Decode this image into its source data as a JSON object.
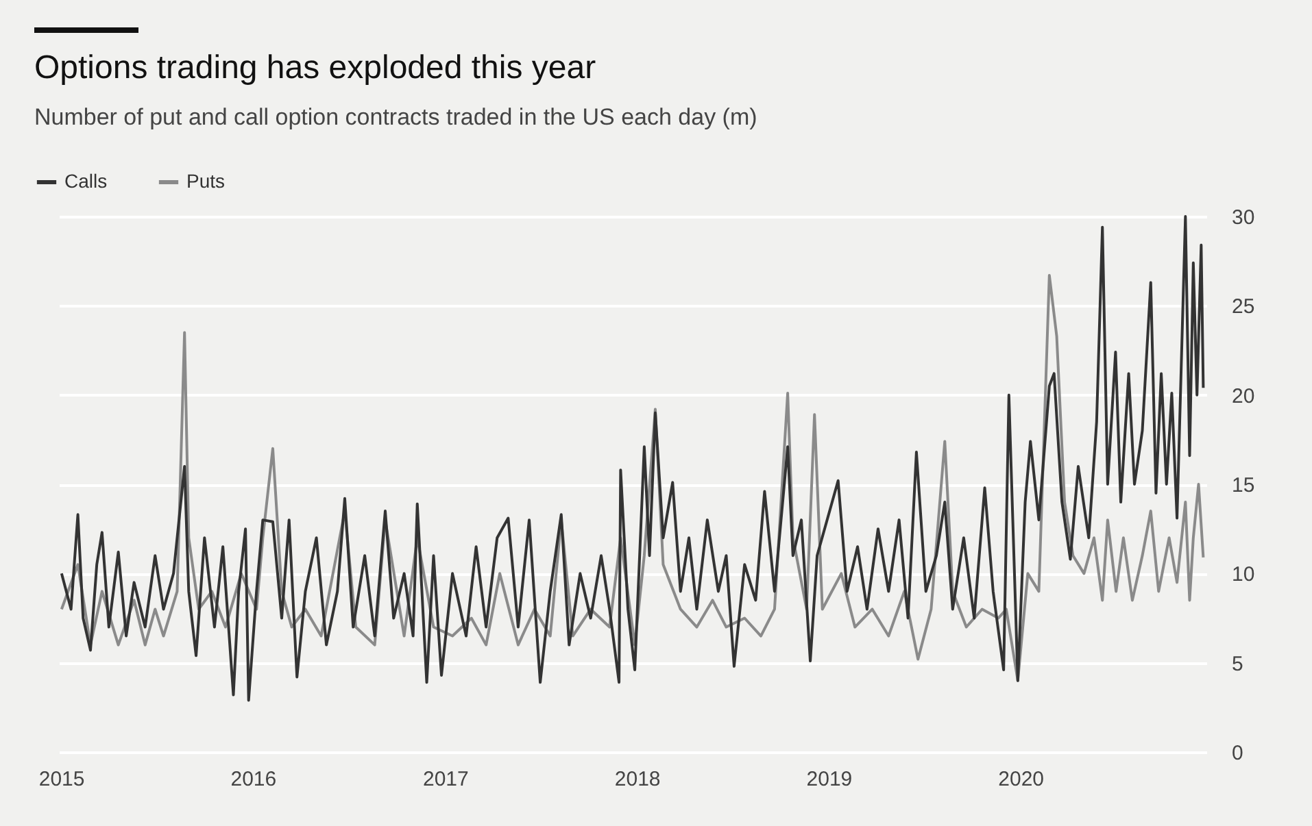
{
  "chart_data": {
    "type": "line",
    "title": "Options trading has exploded this year",
    "subtitle": "Number of put and call option contracts traded in the US each day (m)",
    "xlim": [
      "2014-12-28",
      "2020-12-20"
    ],
    "xticks": [
      {
        "value": "2015-01-01",
        "label": "2015"
      },
      {
        "value": "2016-01-01",
        "label": "2016"
      },
      {
        "value": "2017-01-01",
        "label": "2017"
      },
      {
        "value": "2018-01-01",
        "label": "2018"
      },
      {
        "value": "2019-01-01",
        "label": "2019"
      },
      {
        "value": "2020-01-01",
        "label": "2020"
      }
    ],
    "ylim": [
      0,
      30
    ],
    "yticks": [
      0,
      5,
      10,
      15,
      20,
      25,
      30
    ],
    "grid": "y",
    "legend": "top left",
    "series": [
      {
        "name": "Calls",
        "color": "#333333",
        "x": [
          "2015-01-02",
          "2015-01-20",
          "2015-02-02",
          "2015-02-12",
          "2015-02-26",
          "2015-03-10",
          "2015-03-20",
          "2015-04-02",
          "2015-04-20",
          "2015-05-05",
          "2015-05-20",
          "2015-06-10",
          "2015-06-29",
          "2015-07-15",
          "2015-08-03",
          "2015-08-24",
          "2015-09-01",
          "2015-09-15",
          "2015-10-01",
          "2015-10-20",
          "2015-11-05",
          "2015-11-25",
          "2015-12-05",
          "2015-12-18",
          "2015-12-24",
          "2016-01-08",
          "2016-01-20",
          "2016-02-08",
          "2016-02-25",
          "2016-03-10",
          "2016-03-25",
          "2016-04-10",
          "2016-05-01",
          "2016-05-20",
          "2016-06-10",
          "2016-06-24",
          "2016-07-10",
          "2016-08-01",
          "2016-08-20",
          "2016-09-09",
          "2016-09-25",
          "2016-10-15",
          "2016-11-01",
          "2016-11-09",
          "2016-11-27",
          "2016-12-10",
          "2016-12-25",
          "2017-01-15",
          "2017-02-10",
          "2017-03-01",
          "2017-03-20",
          "2017-04-10",
          "2017-05-01",
          "2017-05-20",
          "2017-06-10",
          "2017-07-01",
          "2017-07-20",
          "2017-08-10",
          "2017-08-25",
          "2017-09-15",
          "2017-10-05",
          "2017-10-25",
          "2017-11-10",
          "2017-11-28",
          "2017-12-01",
          "2017-12-15",
          "2017-12-28",
          "2018-01-15",
          "2018-01-25",
          "2018-02-05",
          "2018-02-20",
          "2018-03-10",
          "2018-03-25",
          "2018-04-10",
          "2018-04-25",
          "2018-05-15",
          "2018-06-05",
          "2018-06-20",
          "2018-07-05",
          "2018-07-25",
          "2018-08-15",
          "2018-09-01",
          "2018-09-20",
          "2018-10-15",
          "2018-10-25",
          "2018-11-10",
          "2018-11-27",
          "2018-12-10",
          "2019-01-19",
          "2019-02-05",
          "2019-02-25",
          "2019-03-15",
          "2019-04-05",
          "2019-04-25",
          "2019-05-15",
          "2019-06-01",
          "2019-06-17",
          "2019-07-05",
          "2019-07-25",
          "2019-08-10",
          "2019-08-25",
          "2019-09-15",
          "2019-10-05",
          "2019-10-25",
          "2019-11-10",
          "2019-11-30",
          "2019-12-10",
          "2019-12-27",
          "2020-01-10",
          "2020-01-20",
          "2020-02-05",
          "2020-02-25",
          "2020-03-05",
          "2020-03-20",
          "2020-04-05",
          "2020-04-20",
          "2020-05-10",
          "2020-05-25",
          "2020-06-05",
          "2020-06-15",
          "2020-06-30",
          "2020-07-10",
          "2020-07-25",
          "2020-08-05",
          "2020-08-20",
          "2020-09-05",
          "2020-09-15",
          "2020-09-25",
          "2020-10-05",
          "2020-10-15",
          "2020-10-25",
          "2020-11-10",
          "2020-11-18",
          "2020-11-25",
          "2020-12-02",
          "2020-12-10",
          "2020-12-14"
        ],
        "values": [
          10.0,
          8.0,
          13.3,
          7.5,
          5.7,
          10.5,
          12.3,
          7.0,
          11.2,
          6.5,
          9.5,
          7.0,
          11.0,
          8.0,
          10.0,
          16.0,
          9.0,
          5.4,
          12.0,
          7.0,
          11.5,
          3.2,
          9.0,
          12.5,
          2.9,
          9.0,
          13.0,
          12.9,
          7.5,
          13.0,
          4.2,
          9.0,
          12.0,
          6.0,
          9.0,
          14.2,
          7.0,
          11.0,
          6.5,
          13.5,
          7.5,
          10.0,
          6.5,
          13.9,
          3.9,
          11.0,
          4.3,
          10.0,
          6.5,
          11.5,
          7.0,
          12.0,
          13.1,
          7.0,
          13.0,
          3.9,
          9.0,
          13.3,
          6.0,
          10.0,
          7.5,
          11.0,
          8.0,
          3.9,
          15.8,
          8.0,
          4.6,
          17.1,
          11.0,
          19.0,
          12.0,
          15.1,
          9.0,
          12.0,
          8.0,
          13.0,
          9.0,
          11.0,
          4.8,
          10.5,
          8.5,
          14.6,
          9.0,
          17.1,
          11.0,
          13.0,
          5.1,
          11.0,
          15.2,
          9.0,
          11.5,
          8.0,
          12.5,
          9.0,
          13.0,
          7.5,
          16.8,
          9.0,
          11.0,
          14.0,
          8.0,
          12.0,
          7.5,
          14.8,
          9.0,
          4.6,
          20.0,
          4.0,
          14.0,
          17.4,
          13.0,
          20.5,
          21.2,
          14.0,
          10.8,
          16.0,
          12.0,
          18.5,
          29.4,
          15.0,
          22.4,
          14.0,
          21.2,
          15.0,
          18.0,
          26.3,
          14.5,
          21.2,
          15.0,
          20.1,
          13.1,
          30.0,
          16.6,
          27.4,
          20.0,
          28.4,
          20.4
        ]
      },
      {
        "name": "Puts",
        "color": "#8a8a8a",
        "x": [
          "2015-01-02",
          "2015-02-02",
          "2015-02-26",
          "2015-03-20",
          "2015-04-20",
          "2015-05-20",
          "2015-06-10",
          "2015-06-29",
          "2015-07-15",
          "2015-08-10",
          "2015-08-24",
          "2015-09-01",
          "2015-09-20",
          "2015-10-15",
          "2015-11-10",
          "2015-12-10",
          "2016-01-08",
          "2016-01-20",
          "2016-02-08",
          "2016-02-25",
          "2016-03-15",
          "2016-04-10",
          "2016-05-10",
          "2016-06-24",
          "2016-07-15",
          "2016-08-20",
          "2016-09-09",
          "2016-10-15",
          "2016-11-09",
          "2016-12-10",
          "2017-01-15",
          "2017-02-20",
          "2017-03-20",
          "2017-04-15",
          "2017-05-20",
          "2017-06-20",
          "2017-07-20",
          "2017-08-10",
          "2017-09-01",
          "2017-10-05",
          "2017-11-10",
          "2017-12-01",
          "2017-12-28",
          "2018-01-15",
          "2018-02-05",
          "2018-02-20",
          "2018-03-25",
          "2018-04-25",
          "2018-05-25",
          "2018-06-20",
          "2018-07-25",
          "2018-08-25",
          "2018-09-20",
          "2018-10-15",
          "2018-10-25",
          "2018-11-20",
          "2018-12-05",
          "2018-12-20",
          "2019-01-25",
          "2019-02-20",
          "2019-03-25",
          "2019-04-25",
          "2019-05-25",
          "2019-06-20",
          "2019-07-15",
          "2019-08-10",
          "2019-08-25",
          "2019-09-20",
          "2019-10-20",
          "2019-11-20",
          "2019-12-05",
          "2019-12-27",
          "2020-01-15",
          "2020-02-05",
          "2020-02-25",
          "2020-03-10",
          "2020-03-25",
          "2020-04-10",
          "2020-05-01",
          "2020-05-20",
          "2020-06-05",
          "2020-06-15",
          "2020-07-01",
          "2020-07-15",
          "2020-08-01",
          "2020-08-20",
          "2020-09-05",
          "2020-09-20",
          "2020-10-10",
          "2020-10-25",
          "2020-11-10",
          "2020-11-18",
          "2020-11-25",
          "2020-12-05",
          "2020-12-14"
        ],
        "values": [
          8.0,
          10.5,
          6.0,
          9.0,
          6.0,
          8.5,
          6.0,
          8.0,
          6.5,
          9.0,
          23.5,
          12.0,
          8.0,
          9.0,
          7.0,
          10.0,
          8.0,
          12.0,
          17.0,
          9.0,
          7.0,
          8.0,
          6.5,
          13.5,
          7.0,
          6.0,
          13.0,
          6.5,
          12.0,
          7.0,
          6.5,
          7.5,
          6.0,
          10.0,
          6.0,
          8.0,
          6.5,
          13.0,
          6.5,
          8.0,
          7.0,
          12.0,
          6.0,
          11.0,
          19.2,
          10.5,
          8.0,
          7.0,
          8.5,
          7.0,
          7.5,
          6.5,
          8.0,
          20.1,
          12.0,
          8.0,
          18.9,
          8.0,
          10.0,
          7.0,
          8.0,
          6.5,
          9.0,
          5.2,
          8.0,
          17.4,
          9.0,
          7.0,
          8.0,
          7.5,
          8.0,
          4.0,
          10.0,
          9.0,
          26.7,
          23.3,
          14.0,
          11.0,
          10.0,
          12.0,
          8.5,
          13.0,
          9.0,
          12.0,
          8.5,
          11.0,
          13.5,
          9.0,
          12.0,
          9.5,
          14.0,
          8.5,
          12.0,
          15.0,
          10.9
        ]
      }
    ]
  }
}
